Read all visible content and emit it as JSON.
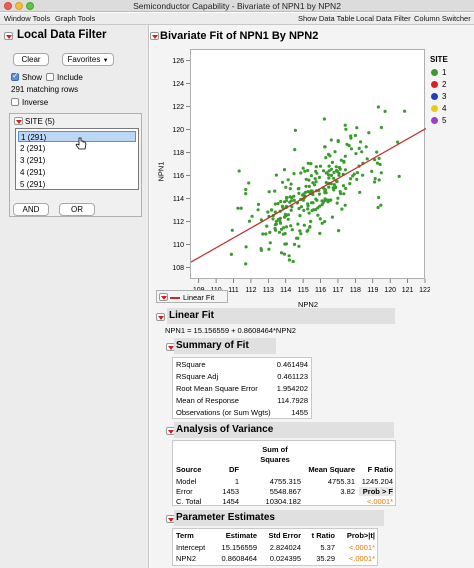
{
  "window": {
    "title": "Semiconductor Capability - Bivariate of NPN1 by NPN2"
  },
  "menubar": {
    "left": [
      "Window Tools",
      "Graph Tools"
    ],
    "right": [
      "Show Data Table",
      "Local Data Filter",
      "Column Switcher"
    ]
  },
  "filter": {
    "title": "Local Data Filter",
    "clear": "Clear",
    "favorites": "Favorites",
    "show": "Show",
    "include": "Include",
    "matching": "291 matching rows",
    "inverse": "Inverse",
    "site_header": "SITE (5)",
    "items": [
      "1 (291)",
      "2 (291)",
      "3 (291)",
      "4 (291)",
      "5 (291)"
    ],
    "and": "AND",
    "or": "OR"
  },
  "bivariate": {
    "title": "Bivariate Fit of NPN1 By NPN2",
    "legend_title": "SITE",
    "legend": [
      {
        "label": "1",
        "color": "#3a9b2e"
      },
      {
        "label": "2",
        "color": "#d32323"
      },
      {
        "label": "3",
        "color": "#1f3fb8"
      },
      {
        "label": "4",
        "color": "#e6cc12"
      },
      {
        "label": "5",
        "color": "#9a3fc9"
      }
    ],
    "fit_legend": "Linear Fit"
  },
  "chart_data": {
    "type": "scatter",
    "xlabel": "NPN2",
    "ylabel": "NPN1",
    "xlim": [
      108.5,
      122
    ],
    "ylim": [
      107,
      127
    ],
    "xticks": [
      109,
      110,
      111,
      112,
      113,
      114,
      115,
      116,
      117,
      118,
      119,
      120,
      121,
      122
    ],
    "yticks": [
      108,
      110,
      112,
      114,
      116,
      118,
      120,
      122,
      124,
      126
    ],
    "grid": false,
    "series": [
      {
        "name": "1",
        "color": "#3a9b2e"
      }
    ],
    "fit_line": {
      "intercept": 15.156559,
      "slope": 0.8608464,
      "color": "#c32b2b"
    },
    "n_points": 291
  },
  "linear_fit": {
    "title": "Linear Fit",
    "equation": "NPN1 = 15.156559 + 0.8608464*NPN2"
  },
  "summary": {
    "title": "Summary of Fit",
    "rows": [
      {
        "label": "RSquare",
        "value": "0.461494"
      },
      {
        "label": "RSquare Adj",
        "value": "0.461123"
      },
      {
        "label": "Root Mean Square Error",
        "value": "1.954202"
      },
      {
        "label": "Mean of Response",
        "value": "114.7928"
      },
      {
        "label": "Observations (or Sum Wgts)",
        "value": "1455"
      }
    ]
  },
  "anova": {
    "title": "Analysis of Variance",
    "headers": {
      "source": "Source",
      "df": "DF",
      "ss_top": "Sum of",
      "ss": "Squares",
      "ms": "Mean Square",
      "f": "F Ratio"
    },
    "rows": [
      {
        "source": "Model",
        "df": "1",
        "ss": "4755.315",
        "ms": "4755.31",
        "f": "1245.204"
      },
      {
        "source": "Error",
        "df": "1453",
        "ss": "5548.867",
        "ms": "3.82",
        "f": "Prob > F"
      },
      {
        "source": "C. Total",
        "df": "1454",
        "ss": "10304.182",
        "ms": "",
        "f": "<.0001*"
      }
    ]
  },
  "params": {
    "title": "Parameter Estimates",
    "headers": {
      "term": "Term",
      "est": "Estimate",
      "se": "Std Error",
      "t": "t Ratio",
      "p": "Prob>|t|"
    },
    "rows": [
      {
        "term": "Intercept",
        "est": "15.156559",
        "se": "2.824024",
        "t": "5.37",
        "p": "<.0001*"
      },
      {
        "term": "NPN2",
        "est": "0.8608464",
        "se": "0.024395",
        "t": "35.29",
        "p": "<.0001*"
      }
    ]
  }
}
